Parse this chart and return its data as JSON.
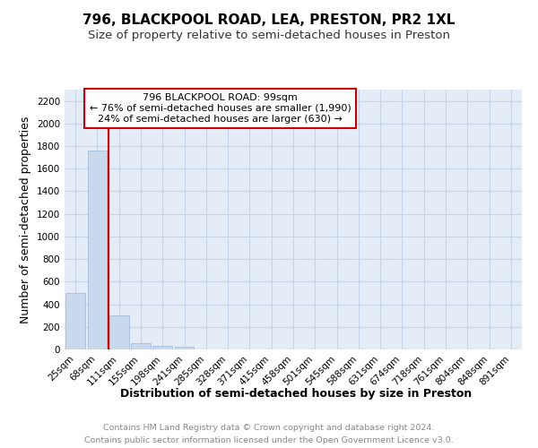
{
  "title": "796, BLACKPOOL ROAD, LEA, PRESTON, PR2 1XL",
  "subtitle": "Size of property relative to semi-detached houses in Preston",
  "xlabel": "Distribution of semi-detached houses by size in Preston",
  "ylabel": "Number of semi-detached properties",
  "footer_line1": "Contains HM Land Registry data © Crown copyright and database right 2024.",
  "footer_line2": "Contains public sector information licensed under the Open Government Licence v3.0.",
  "bin_labels": [
    "25sqm",
    "68sqm",
    "111sqm",
    "155sqm",
    "198sqm",
    "241sqm",
    "285sqm",
    "328sqm",
    "371sqm",
    "415sqm",
    "458sqm",
    "501sqm",
    "545sqm",
    "588sqm",
    "631sqm",
    "674sqm",
    "718sqm",
    "761sqm",
    "804sqm",
    "848sqm",
    "891sqm"
  ],
  "bin_values": [
    500,
    1760,
    305,
    55,
    30,
    20,
    0,
    0,
    0,
    0,
    0,
    0,
    0,
    0,
    0,
    0,
    0,
    0,
    0,
    0,
    0
  ],
  "bar_color": "#c8d8ed",
  "bar_edge_color": "#aac4e0",
  "property_line_x": 1.5,
  "annotation_text_line1": "796 BLACKPOOL ROAD: 99sqm",
  "annotation_text_line2": "← 76% of semi-detached houses are smaller (1,990)",
  "annotation_text_line3": "24% of semi-detached houses are larger (630) →",
  "annotation_box_color": "#ffffff",
  "annotation_border_color": "#cc0000",
  "vline_color": "#cc0000",
  "ylim": [
    0,
    2300
  ],
  "yticks": [
    0,
    200,
    400,
    600,
    800,
    1000,
    1200,
    1400,
    1600,
    1800,
    2000,
    2200
  ],
  "grid_color": "#c8d4e8",
  "bg_color": "#e4ecf7",
  "title_fontsize": 11,
  "subtitle_fontsize": 9.5,
  "axis_label_fontsize": 9,
  "tick_fontsize": 7.5,
  "footer_fontsize": 6.8
}
